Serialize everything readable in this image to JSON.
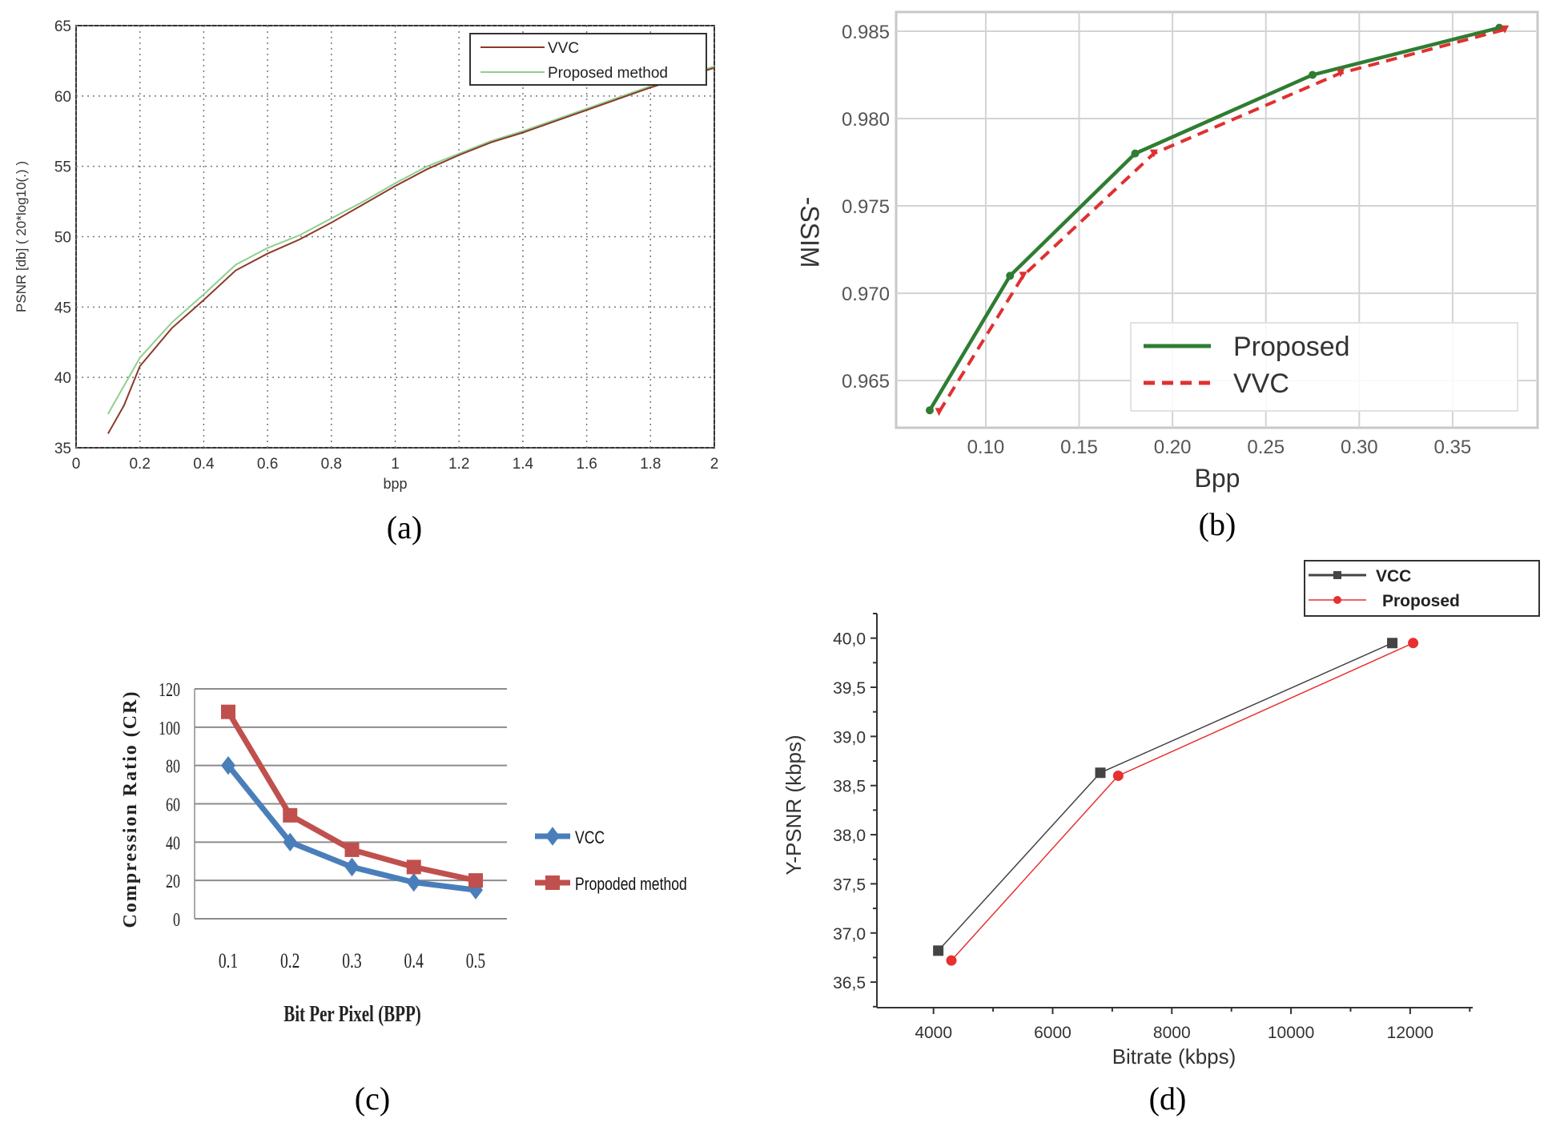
{
  "figures": [
    {
      "caption": "(a)",
      "chart_data": {
        "type": "line",
        "title": "",
        "xlabel": "bpp",
        "ylabel": "PSNR [db] ( 20*log10(.) )",
        "xlim": [
          0,
          2
        ],
        "ylim": [
          35,
          65
        ],
        "xticks": [
          "0",
          "0.2",
          "0.4",
          "0.6",
          "0.8",
          "1",
          "1.2",
          "1.4",
          "1.6",
          "1.8",
          "2"
        ],
        "yticks": [
          "35",
          "40",
          "45",
          "50",
          "55",
          "60",
          "65"
        ],
        "grid": "dotted",
        "legend": "top-right",
        "series": [
          {
            "name": "VVC",
            "color": "#8b3a2a",
            "x": [
              0.1,
              0.15,
              0.2,
              0.3,
              0.4,
              0.5,
              0.6,
              0.7,
              0.8,
              0.9,
              1.0,
              1.1,
              1.2,
              1.3,
              1.4,
              1.5,
              1.6,
              1.7,
              1.8,
              1.9,
              2.0
            ],
            "y": [
              36.0,
              38.0,
              40.8,
              43.5,
              45.5,
              47.6,
              48.8,
              49.8,
              51.0,
              52.3,
              53.6,
              54.8,
              55.8,
              56.7,
              57.4,
              58.2,
              59.0,
              59.8,
              60.6,
              61.3,
              62.0
            ]
          },
          {
            "name": "Proposed method",
            "color": "#8fcf8f",
            "x": [
              0.1,
              0.2,
              0.3,
              0.4,
              0.5,
              0.6,
              0.7,
              0.8,
              0.9,
              1.0,
              1.1,
              1.2,
              1.3,
              1.4,
              1.5,
              1.6,
              1.7,
              1.8,
              1.9,
              2.0
            ],
            "y": [
              37.4,
              41.4,
              43.9,
              45.9,
              48.0,
              49.2,
              50.1,
              51.3,
              52.5,
              53.8,
              55.0,
              55.9,
              56.8,
              57.5,
              58.3,
              59.1,
              59.9,
              60.7,
              61.4,
              62.1
            ]
          }
        ]
      }
    },
    {
      "caption": "(b)",
      "chart_data": {
        "type": "line",
        "title": "",
        "xlabel": "Bpp",
        "ylabel": "-SSIM",
        "xlim": [
          0.052,
          0.3955
        ],
        "ylim": [
          0.9623,
          0.9861
        ],
        "xticks": [
          "0.10",
          "0.15",
          "0.20",
          "0.25",
          "0.30",
          "0.35"
        ],
        "yticks": [
          "0.965",
          "0.970",
          "0.975",
          "0.980",
          "0.985"
        ],
        "grid": "solid",
        "legend": "bottom-right",
        "series": [
          {
            "name": "Proposed",
            "color": "#2e7d32",
            "style": "solid",
            "x": [
              0.07,
              0.113,
              0.18,
              0.275,
              0.375
            ],
            "y": [
              0.9633,
              0.971,
              0.978,
              0.9825,
              0.9852
            ]
          },
          {
            "name": "VVC",
            "color": "#e03030",
            "style": "dashed",
            "x": [
              0.075,
              0.12,
              0.19,
              0.29,
              0.378
            ],
            "y": [
              0.9632,
              0.971,
              0.978,
              0.9826,
              0.9851
            ]
          }
        ]
      }
    },
    {
      "caption": "(c)",
      "chart_data": {
        "type": "line",
        "title": "",
        "xlabel": "Bit Per Pixel (BPP)",
        "ylabel": "Compression Ratio (CR)",
        "categories": [
          "0.1",
          "0.2",
          "0.3",
          "0.4",
          "0.5"
        ],
        "ylim": [
          0,
          120
        ],
        "yticks": [
          "0",
          "20",
          "40",
          "60",
          "80",
          "100",
          "120"
        ],
        "grid": "horizontal",
        "legend": "right",
        "series": [
          {
            "name": "VCC",
            "color": "#4a7ebb",
            "marker": "diamond",
            "values": [
              80,
              40,
              27,
              19,
              15
            ]
          },
          {
            "name": "Propoded method",
            "color": "#c0504d",
            "marker": "square",
            "values": [
              108,
              54,
              36,
              27,
              20
            ]
          }
        ]
      }
    },
    {
      "caption": "(d)",
      "chart_data": {
        "type": "line",
        "title": "",
        "xlabel": "Bitrate (kbps)",
        "ylabel": "Y-PSNR (kbps)",
        "xlim": [
          3050,
          13050
        ],
        "ylim": [
          36.24,
          40.25
        ],
        "xticks": [
          "4000",
          "6000",
          "8000",
          "10000",
          "12000"
        ],
        "yticks": [
          "36,5",
          "37,0",
          "37,5",
          "38,0",
          "38,5",
          "39,0",
          "39,5",
          "40,0"
        ],
        "grid": "none",
        "legend": "top-right",
        "series": [
          {
            "name": "VCC",
            "color": "#444444",
            "marker": "square",
            "x": [
              4080,
              6800,
              11700
            ],
            "y": [
              36.82,
              38.63,
              39.95
            ]
          },
          {
            "name": "Proposed",
            "color": "#e83030",
            "marker": "circle",
            "x": [
              4300,
              7100,
              12050
            ],
            "y": [
              36.72,
              38.6,
              39.95
            ]
          }
        ]
      }
    }
  ]
}
